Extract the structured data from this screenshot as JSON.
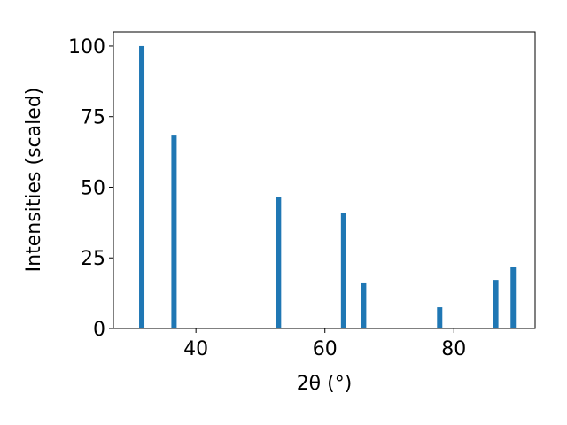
{
  "chart_data": {
    "type": "bar",
    "x_label": "2θ (°)",
    "y_label": "Intensities (scaled)",
    "x": [
      31.6,
      36.6,
      52.8,
      62.9,
      66.0,
      77.8,
      86.5,
      89.2
    ],
    "values": [
      100,
      68.3,
      46.4,
      40.8,
      16,
      7.5,
      17.2,
      21.9
    ],
    "color": "#1f77b4",
    "xlim": [
      27.2,
      92.6
    ],
    "xticks": [
      40,
      60,
      80
    ],
    "ylim": [
      0,
      105
    ],
    "yticks": [
      0,
      25,
      50,
      75,
      100
    ],
    "grid": false
  }
}
